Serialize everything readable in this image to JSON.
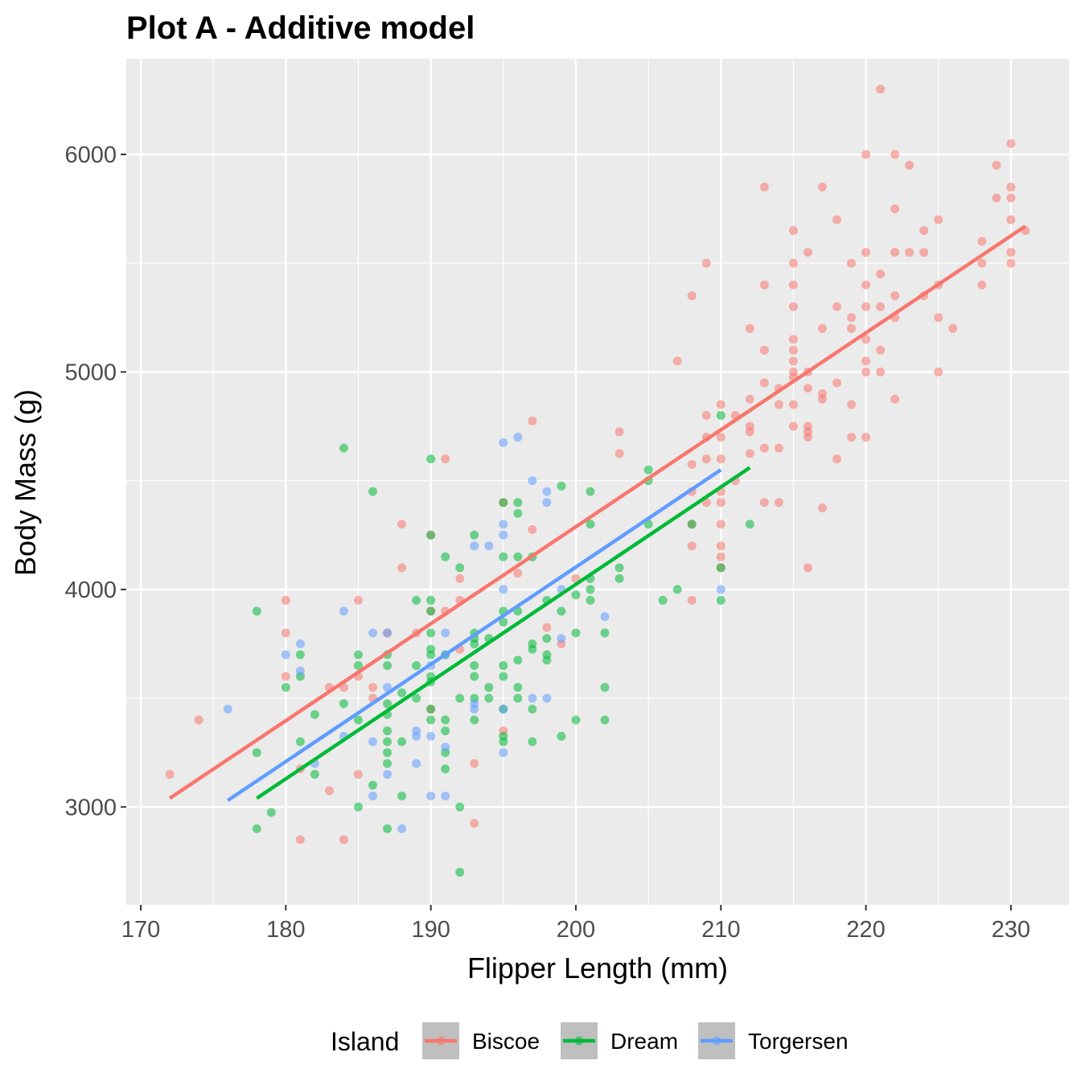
{
  "chart_data": {
    "type": "scatter",
    "title": "Plot A - Additive model",
    "xlabel": "Flipper Length (mm)",
    "ylabel": "Body Mass (g)",
    "xlim": [
      169,
      234
    ],
    "ylim": [
      2550,
      6440
    ],
    "xticks": [
      170,
      180,
      190,
      200,
      210,
      220,
      230
    ],
    "yticks": [
      3000,
      4000,
      5000,
      6000
    ],
    "grid": true,
    "legend": {
      "title": "Island",
      "position": "bottom"
    },
    "series": [
      {
        "name": "Biscoe",
        "color": "#F8766D",
        "fit": [
          [
            172,
            3040
          ],
          [
            231,
            5670
          ]
        ],
        "points": [
          [
            172,
            3150
          ],
          [
            174,
            3400
          ],
          [
            180,
            3950
          ],
          [
            180,
            3800
          ],
          [
            180,
            3600
          ],
          [
            181,
            2850
          ],
          [
            181,
            3175
          ],
          [
            183,
            3075
          ],
          [
            183,
            3550
          ],
          [
            184,
            2850
          ],
          [
            184,
            3550
          ],
          [
            185,
            3950
          ],
          [
            185,
            3150
          ],
          [
            185,
            3600
          ],
          [
            186,
            3550
          ],
          [
            186,
            3500
          ],
          [
            187,
            3800
          ],
          [
            188,
            4300
          ],
          [
            188,
            4100
          ],
          [
            189,
            3800
          ],
          [
            190,
            3900
          ],
          [
            190,
            4250
          ],
          [
            190,
            3450
          ],
          [
            191,
            4600
          ],
          [
            191,
            3900
          ],
          [
            192,
            4050
          ],
          [
            192,
            3950
          ],
          [
            192,
            3725
          ],
          [
            193,
            2925
          ],
          [
            193,
            3200
          ],
          [
            195,
            4400
          ],
          [
            195,
            3350
          ],
          [
            196,
            4075
          ],
          [
            197,
            4775
          ],
          [
            197,
            4275
          ],
          [
            198,
            3825
          ],
          [
            199,
            3750
          ],
          [
            200,
            4050
          ],
          [
            203,
            4725
          ],
          [
            203,
            4625
          ],
          [
            207,
            5050
          ],
          [
            208,
            5350
          ],
          [
            208,
            4575
          ],
          [
            208,
            4450
          ],
          [
            208,
            4300
          ],
          [
            208,
            4200
          ],
          [
            208,
            3950
          ],
          [
            209,
            5500
          ],
          [
            209,
            4800
          ],
          [
            209,
            4700
          ],
          [
            209,
            4600
          ],
          [
            209,
            4400
          ],
          [
            210,
            4850
          ],
          [
            210,
            4700
          ],
          [
            210,
            4600
          ],
          [
            210,
            4450
          ],
          [
            210,
            4400
          ],
          [
            210,
            4300
          ],
          [
            210,
            4200
          ],
          [
            210,
            4150
          ],
          [
            210,
            4100
          ],
          [
            211,
            4800
          ],
          [
            211,
            4500
          ],
          [
            212,
            5200
          ],
          [
            212,
            4875
          ],
          [
            212,
            4750
          ],
          [
            212,
            4725
          ],
          [
            212,
            4625
          ],
          [
            213,
            5850
          ],
          [
            213,
            5400
          ],
          [
            213,
            5100
          ],
          [
            213,
            4950
          ],
          [
            213,
            4650
          ],
          [
            213,
            4400
          ],
          [
            214,
            4925
          ],
          [
            214,
            4850
          ],
          [
            214,
            4650
          ],
          [
            214,
            4400
          ],
          [
            215,
            5650
          ],
          [
            215,
            5500
          ],
          [
            215,
            5400
          ],
          [
            215,
            5300
          ],
          [
            215,
            5150
          ],
          [
            215,
            5100
          ],
          [
            215,
            5050
          ],
          [
            215,
            5000
          ],
          [
            215,
            4975
          ],
          [
            215,
            4850
          ],
          [
            215,
            4750
          ],
          [
            216,
            5550
          ],
          [
            216,
            5000
          ],
          [
            216,
            4925
          ],
          [
            216,
            4750
          ],
          [
            216,
            4725
          ],
          [
            216,
            4700
          ],
          [
            216,
            4100
          ],
          [
            217,
            5850
          ],
          [
            217,
            5200
          ],
          [
            217,
            4900
          ],
          [
            217,
            4875
          ],
          [
            217,
            4375
          ],
          [
            218,
            5700
          ],
          [
            218,
            5300
          ],
          [
            218,
            4950
          ],
          [
            218,
            4600
          ],
          [
            219,
            5500
          ],
          [
            219,
            5250
          ],
          [
            219,
            5200
          ],
          [
            219,
            4850
          ],
          [
            219,
            4700
          ],
          [
            220,
            6000
          ],
          [
            220,
            5550
          ],
          [
            220,
            5400
          ],
          [
            220,
            5300
          ],
          [
            220,
            5150
          ],
          [
            220,
            5050
          ],
          [
            220,
            5000
          ],
          [
            220,
            4700
          ],
          [
            221,
            6300
          ],
          [
            221,
            5450
          ],
          [
            221,
            5300
          ],
          [
            221,
            5100
          ],
          [
            221,
            5000
          ],
          [
            222,
            6000
          ],
          [
            222,
            5750
          ],
          [
            222,
            5550
          ],
          [
            222,
            5350
          ],
          [
            222,
            5250
          ],
          [
            222,
            4875
          ],
          [
            223,
            5950
          ],
          [
            223,
            5550
          ],
          [
            224,
            5650
          ],
          [
            224,
            5550
          ],
          [
            224,
            5350
          ],
          [
            225,
            5700
          ],
          [
            225,
            5400
          ],
          [
            225,
            5250
          ],
          [
            225,
            5000
          ],
          [
            226,
            5200
          ],
          [
            228,
            5600
          ],
          [
            228,
            5500
          ],
          [
            228,
            5400
          ],
          [
            229,
            5950
          ],
          [
            229,
            5800
          ],
          [
            230,
            6050
          ],
          [
            230,
            5850
          ],
          [
            230,
            5800
          ],
          [
            230,
            5700
          ],
          [
            230,
            5550
          ],
          [
            230,
            5500
          ],
          [
            231,
            5650
          ]
        ]
      },
      {
        "name": "Dream",
        "color": "#00BA38",
        "fit": [
          [
            178,
            3040
          ],
          [
            212,
            4560
          ]
        ],
        "points": [
          [
            178,
            3900
          ],
          [
            178,
            3250
          ],
          [
            178,
            2900
          ],
          [
            179,
            2975
          ],
          [
            180,
            3550
          ],
          [
            181,
            3700
          ],
          [
            181,
            3600
          ],
          [
            181,
            3300
          ],
          [
            182,
            3425
          ],
          [
            182,
            3150
          ],
          [
            184,
            4650
          ],
          [
            184,
            3475
          ],
          [
            185,
            3700
          ],
          [
            185,
            3650
          ],
          [
            185,
            3400
          ],
          [
            185,
            3000
          ],
          [
            186,
            4450
          ],
          [
            186,
            3100
          ],
          [
            187,
            3700
          ],
          [
            187,
            3650
          ],
          [
            187,
            3475
          ],
          [
            187,
            3425
          ],
          [
            187,
            3350
          ],
          [
            187,
            3300
          ],
          [
            187,
            3250
          ],
          [
            187,
            3200
          ],
          [
            187,
            2900
          ],
          [
            188,
            3525
          ],
          [
            188,
            3300
          ],
          [
            188,
            3050
          ],
          [
            189,
            3950
          ],
          [
            189,
            3650
          ],
          [
            189,
            3500
          ],
          [
            190,
            4600
          ],
          [
            190,
            4250
          ],
          [
            190,
            3950
          ],
          [
            190,
            3900
          ],
          [
            190,
            3800
          ],
          [
            190,
            3725
          ],
          [
            190,
            3700
          ],
          [
            190,
            3600
          ],
          [
            190,
            3575
          ],
          [
            190,
            3450
          ],
          [
            190,
            3400
          ],
          [
            191,
            4150
          ],
          [
            191,
            3700
          ],
          [
            191,
            3400
          ],
          [
            191,
            3350
          ],
          [
            191,
            3250
          ],
          [
            191,
            3175
          ],
          [
            192,
            4100
          ],
          [
            192,
            3500
          ],
          [
            192,
            3000
          ],
          [
            192,
            2700
          ],
          [
            193,
            4250
          ],
          [
            193,
            3800
          ],
          [
            193,
            3775
          ],
          [
            193,
            3750
          ],
          [
            193,
            3650
          ],
          [
            193,
            3600
          ],
          [
            193,
            3500
          ],
          [
            193,
            3400
          ],
          [
            194,
            3775
          ],
          [
            194,
            3550
          ],
          [
            194,
            3500
          ],
          [
            195,
            4400
          ],
          [
            195,
            4150
          ],
          [
            195,
            3900
          ],
          [
            195,
            3850
          ],
          [
            195,
            3650
          ],
          [
            195,
            3600
          ],
          [
            195,
            3450
          ],
          [
            195,
            3325
          ],
          [
            195,
            3300
          ],
          [
            196,
            4400
          ],
          [
            196,
            4350
          ],
          [
            196,
            4150
          ],
          [
            196,
            3900
          ],
          [
            196,
            3675
          ],
          [
            196,
            3550
          ],
          [
            196,
            3500
          ],
          [
            197,
            4150
          ],
          [
            197,
            3750
          ],
          [
            197,
            3725
          ],
          [
            197,
            3450
          ],
          [
            197,
            3300
          ],
          [
            198,
            3950
          ],
          [
            198,
            3775
          ],
          [
            198,
            3700
          ],
          [
            198,
            3675
          ],
          [
            199,
            4475
          ],
          [
            199,
            3900
          ],
          [
            199,
            3325
          ],
          [
            200,
            3975
          ],
          [
            200,
            3800
          ],
          [
            200,
            3400
          ],
          [
            201,
            4450
          ],
          [
            201,
            4300
          ],
          [
            201,
            4050
          ],
          [
            201,
            4000
          ],
          [
            201,
            3950
          ],
          [
            202,
            3800
          ],
          [
            202,
            3550
          ],
          [
            202,
            3400
          ],
          [
            203,
            4100
          ],
          [
            203,
            4050
          ],
          [
            205,
            4550
          ],
          [
            205,
            4500
          ],
          [
            205,
            4300
          ],
          [
            206,
            3950
          ],
          [
            207,
            4000
          ],
          [
            208,
            4300
          ],
          [
            210,
            4800
          ],
          [
            210,
            4100
          ],
          [
            210,
            3950
          ],
          [
            212,
            4300
          ]
        ]
      },
      {
        "name": "Torgersen",
        "color": "#619CFF",
        "fit": [
          [
            176,
            3030
          ],
          [
            210,
            4550
          ]
        ],
        "points": [
          [
            176,
            3450
          ],
          [
            180,
            3700
          ],
          [
            181,
            3750
          ],
          [
            181,
            3625
          ],
          [
            182,
            3200
          ],
          [
            184,
            3900
          ],
          [
            184,
            3325
          ],
          [
            186,
            3800
          ],
          [
            186,
            3300
          ],
          [
            186,
            3050
          ],
          [
            187,
            3800
          ],
          [
            187,
            3550
          ],
          [
            187,
            3150
          ],
          [
            188,
            2900
          ],
          [
            189,
            3350
          ],
          [
            189,
            3325
          ],
          [
            189,
            3200
          ],
          [
            190,
            3650
          ],
          [
            190,
            3325
          ],
          [
            190,
            3050
          ],
          [
            191,
            3800
          ],
          [
            191,
            3700
          ],
          [
            191,
            3275
          ],
          [
            191,
            3050
          ],
          [
            193,
            4200
          ],
          [
            193,
            3475
          ],
          [
            193,
            3450
          ],
          [
            194,
            4200
          ],
          [
            195,
            4675
          ],
          [
            195,
            4300
          ],
          [
            195,
            4250
          ],
          [
            195,
            4000
          ],
          [
            195,
            3450
          ],
          [
            195,
            3250
          ],
          [
            196,
            4700
          ],
          [
            197,
            4500
          ],
          [
            197,
            3500
          ],
          [
            198,
            4450
          ],
          [
            198,
            4400
          ],
          [
            198,
            3500
          ],
          [
            199,
            4000
          ],
          [
            199,
            3775
          ],
          [
            202,
            3875
          ],
          [
            210,
            4000
          ]
        ]
      }
    ]
  }
}
